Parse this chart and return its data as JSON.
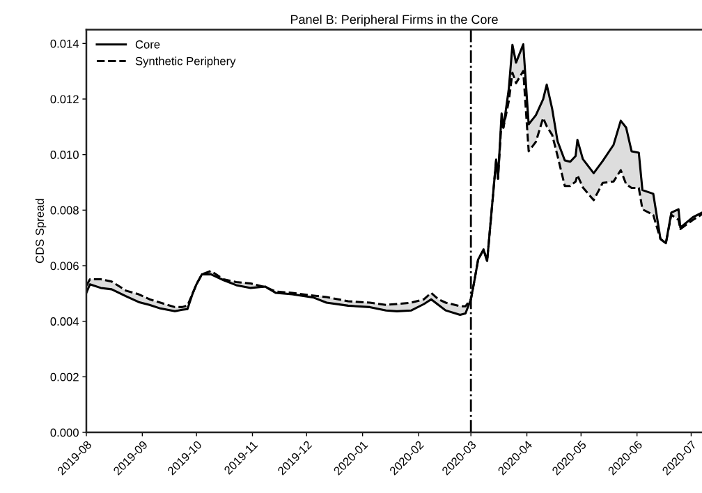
{
  "chart_data": {
    "type": "line",
    "title": "Panel B: Peripheral Firms in the Core",
    "ylabel": "CDS Spread",
    "x": [
      "2019-08-01",
      "2019-08-03",
      "2019-08-09",
      "2019-08-15",
      "2019-08-23",
      "2019-08-30",
      "2019-09-05",
      "2019-09-11",
      "2019-09-19",
      "2019-09-23",
      "2019-09-26",
      "2019-09-29",
      "2019-10-01",
      "2019-10-04",
      "2019-10-09",
      "2019-10-16",
      "2019-10-23",
      "2019-10-31",
      "2019-11-08",
      "2019-11-14",
      "2019-11-23",
      "2019-12-05",
      "2019-12-12",
      "2019-12-24",
      "2020-01-05",
      "2020-01-14",
      "2020-01-20",
      "2020-01-28",
      "2020-02-04",
      "2020-02-08",
      "2020-02-12",
      "2020-02-16",
      "2020-02-24",
      "2020-02-27",
      "2020-03-01",
      "2020-03-03",
      "2020-03-05",
      "2020-03-08",
      "2020-03-10",
      "2020-03-15",
      "2020-03-16",
      "2020-03-18",
      "2020-03-19",
      "2020-03-22",
      "2020-03-24",
      "2020-03-26",
      "2020-03-30",
      "2020-04-02",
      "2020-04-06",
      "2020-04-10",
      "2020-04-12",
      "2020-04-15",
      "2020-04-18",
      "2020-04-22",
      "2020-04-25",
      "2020-04-28",
      "2020-04-29",
      "2020-05-02",
      "2020-05-08",
      "2020-05-13",
      "2020-05-19",
      "2020-05-23",
      "2020-05-26",
      "2020-05-29",
      "2020-06-02",
      "2020-06-04",
      "2020-06-10",
      "2020-06-14",
      "2020-06-17",
      "2020-06-20",
      "2020-06-24",
      "2020-06-25",
      "2020-07-02",
      "2020-07-07"
    ],
    "series": [
      {
        "name": "Core",
        "color": "#000000",
        "line_style": "solid",
        "values": [
          0.00502,
          0.00533,
          0.0052,
          0.00515,
          0.0049,
          0.00469,
          0.00459,
          0.00446,
          0.00436,
          0.00441,
          0.00444,
          0.00502,
          0.00533,
          0.00569,
          0.00569,
          0.00548,
          0.0053,
          0.0052,
          0.00525,
          0.00502,
          0.00497,
          0.00485,
          0.00467,
          0.00456,
          0.00451,
          0.00439,
          0.00436,
          0.00439,
          0.00462,
          0.00479,
          0.00459,
          0.00439,
          0.00423,
          0.00428,
          0.00479,
          0.00548,
          0.00622,
          0.00658,
          0.00617,
          0.00982,
          0.00913,
          0.01148,
          0.01097,
          0.01237,
          0.01395,
          0.01331,
          0.01397,
          0.01109,
          0.01142,
          0.01199,
          0.01252,
          0.01165,
          0.01048,
          0.00979,
          0.00974,
          0.00995,
          0.01053,
          0.00984,
          0.00933,
          0.00977,
          0.01035,
          0.01122,
          0.01097,
          0.01012,
          0.01007,
          0.00872,
          0.00859,
          0.00696,
          0.00681,
          0.00791,
          0.00803,
          0.00737,
          0.00775,
          0.00791
        ]
      },
      {
        "name": "Synthetic Periphery",
        "color": "#000000",
        "line_style": "dashed",
        "values": [
          0.00528,
          0.00551,
          0.00551,
          0.00543,
          0.0051,
          0.00497,
          0.00479,
          0.00467,
          0.00451,
          0.00451,
          0.00456,
          0.00502,
          0.00533,
          0.00569,
          0.00581,
          0.00551,
          0.00541,
          0.00536,
          0.00523,
          0.00507,
          0.00502,
          0.00492,
          0.00487,
          0.00472,
          0.00467,
          0.00459,
          0.00462,
          0.00467,
          0.00479,
          0.00502,
          0.00479,
          0.00467,
          0.00454,
          0.00454,
          0.00479,
          0.00548,
          0.00622,
          0.00658,
          0.00617,
          0.00982,
          0.00913,
          0.01122,
          0.01097,
          0.01193,
          0.01295,
          0.01257,
          0.01301,
          0.01012,
          0.01046,
          0.01132,
          0.01102,
          0.01071,
          0.00995,
          0.00887,
          0.00887,
          0.00903,
          0.00926,
          0.00882,
          0.00836,
          0.00898,
          0.00903,
          0.00944,
          0.00893,
          0.0088,
          0.0088,
          0.00803,
          0.00783,
          0.00696,
          0.00681,
          0.00783,
          0.00765,
          0.00732,
          0.00765,
          0.00785
        ]
      }
    ],
    "xlim": [
      "2019-08-01",
      "2020-07-07"
    ],
    "xticks": [
      {
        "value": "2019-08-01",
        "label": "2019-08"
      },
      {
        "value": "2019-09-01",
        "label": "2019-09"
      },
      {
        "value": "2019-10-01",
        "label": "2019-10"
      },
      {
        "value": "2019-11-01",
        "label": "2019-11"
      },
      {
        "value": "2019-12-01",
        "label": "2019-12"
      },
      {
        "value": "2020-01-01",
        "label": "2020-01"
      },
      {
        "value": "2020-02-01",
        "label": "2020-02"
      },
      {
        "value": "2020-03-01",
        "label": "2020-03"
      },
      {
        "value": "2020-04-01",
        "label": "2020-04"
      },
      {
        "value": "2020-05-01",
        "label": "2020-05"
      },
      {
        "value": "2020-06-01",
        "label": "2020-06"
      },
      {
        "value": "2020-07-01",
        "label": "2020-07"
      }
    ],
    "ylim": [
      0,
      0.0145
    ],
    "yticks": [
      {
        "value": 0,
        "label": "0.000"
      },
      {
        "value": 0.002,
        "label": "0.002"
      },
      {
        "value": 0.004,
        "label": "0.004"
      },
      {
        "value": 0.006,
        "label": "0.006"
      },
      {
        "value": 0.008,
        "label": "0.008"
      },
      {
        "value": 0.01,
        "label": "0.010"
      },
      {
        "value": 0.012,
        "label": "0.012"
      },
      {
        "value": 0.014,
        "label": "0.014"
      }
    ],
    "ref_lines": [
      {
        "axis": "x",
        "value": "2020-03-01",
        "color": "#000000",
        "line_style": "dashdot"
      }
    ],
    "legend": "top left",
    "grid": false
  }
}
